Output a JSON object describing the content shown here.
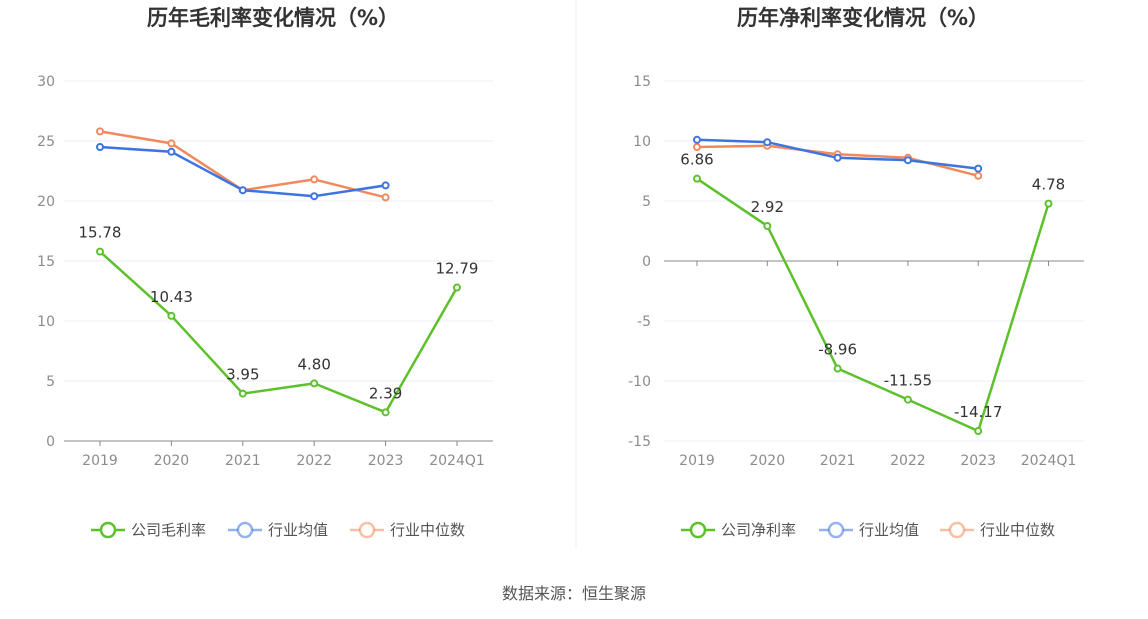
{
  "source": "数据来源：恒生聚源",
  "chart_data": [
    {
      "type": "line",
      "title": "历年毛利率变化情况（%）",
      "categories": [
        "2019",
        "2020",
        "2021",
        "2022",
        "2023",
        "2024Q1"
      ],
      "y_ticks": [
        "0",
        "5",
        "10",
        "15",
        "20",
        "25",
        "30"
      ],
      "ylim": [
        0,
        30
      ],
      "grid": true,
      "legend_position": "bottom",
      "series": [
        {
          "name": "公司毛利率",
          "color": "#5cc12a",
          "values": [
            15.78,
            10.43,
            3.95,
            4.8,
            2.39,
            12.79
          ],
          "labels": [
            "15.78",
            "10.43",
            "3.95",
            "4.80",
            "2.39",
            "12.79"
          ]
        },
        {
          "name": "行业均值",
          "color": "#3d74e0",
          "values": [
            24.5,
            24.1,
            20.9,
            20.4,
            21.3,
            null
          ]
        },
        {
          "name": "行业中位数",
          "color": "#f08a5d",
          "values": [
            25.8,
            24.8,
            20.9,
            21.8,
            20.3,
            null
          ]
        }
      ]
    },
    {
      "type": "line",
      "title": "历年净利率变化情况（%）",
      "categories": [
        "2019",
        "2020",
        "2021",
        "2022",
        "2023",
        "2024Q1"
      ],
      "y_ticks": [
        "-15",
        "-10",
        "-5",
        "0",
        "5",
        "10",
        "15"
      ],
      "ylim": [
        -15,
        15
      ],
      "grid": true,
      "legend_position": "bottom",
      "series": [
        {
          "name": "公司净利率",
          "color": "#5cc12a",
          "values": [
            6.86,
            2.92,
            -8.96,
            -11.55,
            -14.17,
            4.78
          ],
          "labels": [
            "6.86",
            "2.92",
            "-8.96",
            "-11.55",
            "-14.17",
            "4.78"
          ]
        },
        {
          "name": "行业均值",
          "color": "#3d74e0",
          "values": [
            10.1,
            9.9,
            8.6,
            8.4,
            7.7,
            null
          ]
        },
        {
          "name": "行业中位数",
          "color": "#f08a5d",
          "values": [
            9.5,
            9.6,
            8.9,
            8.6,
            7.1,
            null
          ]
        }
      ]
    }
  ]
}
